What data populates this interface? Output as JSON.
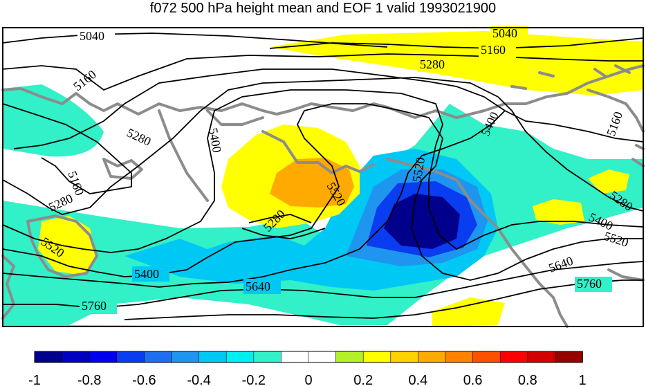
{
  "title": "f072 500 hPa height mean and EOF 1 valid 1993021900",
  "colorbar": {
    "ticks": [
      "-1",
      "-0.8",
      "-0.6",
      "-0.4",
      "-0.2",
      "0",
      "0.2",
      "0.4",
      "0.6",
      "0.8",
      "1"
    ],
    "colors": [
      "#00008c",
      "#0000c0",
      "#0000ee",
      "#0a3cf0",
      "#1e6ef0",
      "#1e96f0",
      "#00c8f5",
      "#00f0f0",
      "#32f0c8",
      "#ffffff",
      "#ffffff",
      "#b4f028",
      "#ffff00",
      "#ffd200",
      "#ffaa00",
      "#ff8200",
      "#ff5000",
      "#ff0000",
      "#d20000",
      "#960000"
    ]
  },
  "contours": [
    "5040",
    "5040",
    "5160",
    "5160",
    "5160",
    "5160",
    "5280",
    "5280",
    "5280",
    "5280",
    "5280",
    "5400",
    "5400",
    "5400",
    "5400",
    "5520",
    "5520",
    "5520",
    "5520",
    "5640",
    "5640",
    "5760",
    "5760"
  ],
  "colors": {
    "coast": "#8c8c8c",
    "contour": "#000000",
    "frame": "#000000"
  }
}
